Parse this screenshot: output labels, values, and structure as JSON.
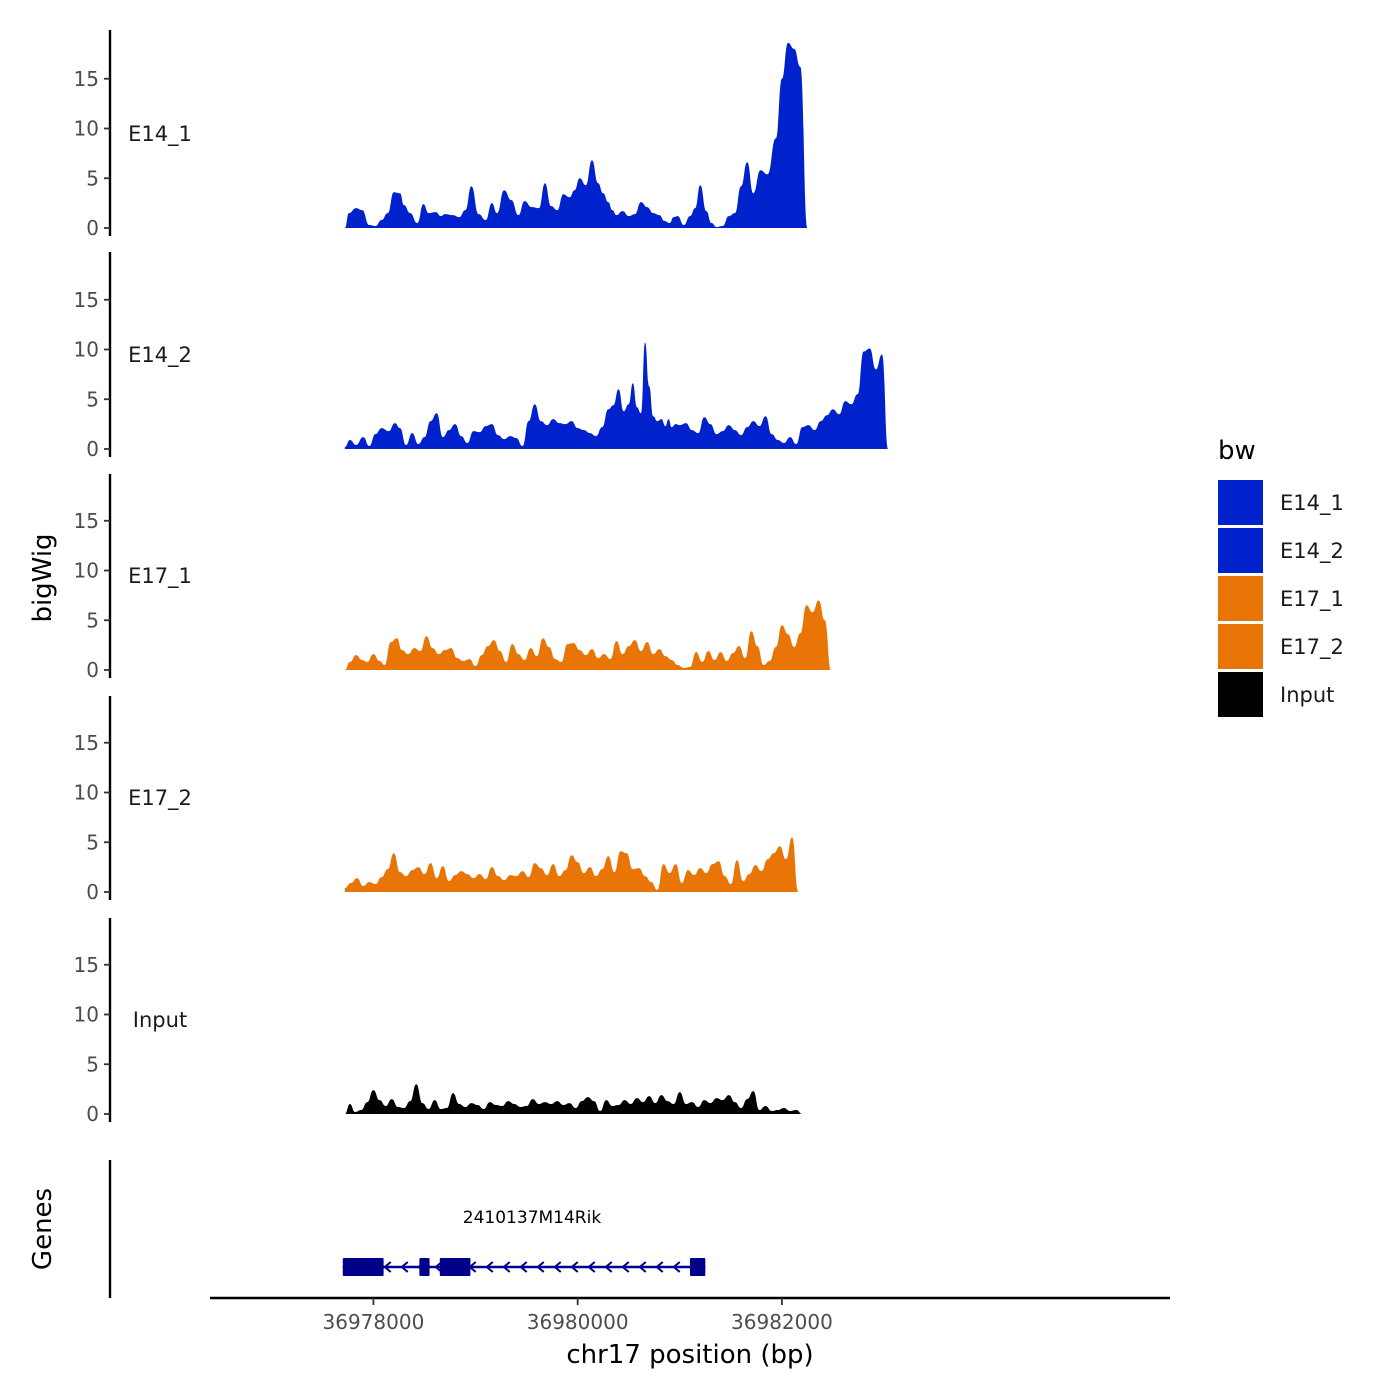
{
  "chart_data": {
    "type": "area",
    "xlabel": "chr17 position (bp)",
    "ylabel": "bigWig",
    "genes_label": "Genes",
    "xlim": [
      36976400,
      36985800
    ],
    "ylim": [
      0,
      20
    ],
    "y_ticks": [
      0,
      5,
      10,
      15
    ],
    "x_ticks": [
      {
        "value": 36978000,
        "label": "36978000"
      },
      {
        "value": 36980000,
        "label": "36980000"
      },
      {
        "value": 36982000,
        "label": "36982000"
      }
    ],
    "legend": {
      "title": "bw",
      "entries": [
        {
          "label": "E14_1",
          "color": "#0022CC"
        },
        {
          "label": "E14_2",
          "color": "#0022CC"
        },
        {
          "label": "E17_1",
          "color": "#E87506"
        },
        {
          "label": "E17_2",
          "color": "#E87506"
        },
        {
          "label": "Input",
          "color": "#000000"
        }
      ]
    },
    "series": [
      {
        "name": "E14_1",
        "label": "E14_1",
        "color": "#0022CC",
        "x": [
          36977720,
          36977760,
          36977830,
          36977890,
          36977960,
          36978020,
          36978080,
          36978140,
          36978200,
          36978260,
          36978300,
          36978360,
          36978430,
          36978490,
          36978540,
          36978610,
          36978660,
          36978700,
          36978780,
          36978840,
          36978900,
          36978960,
          36979030,
          36979100,
          36979160,
          36979210,
          36979280,
          36979350,
          36979420,
          36979480,
          36979550,
          36979620,
          36979680,
          36979740,
          36979800,
          36979860,
          36979920,
          36979970,
          36980020,
          36980080,
          36980140,
          36980200,
          36980250,
          36980300,
          36980340,
          36980380,
          36980440,
          36980500,
          36980560,
          36980620,
          36980680,
          36980740,
          36980800,
          36980850,
          36980900,
          36980940,
          36980980,
          36981040,
          36981100,
          36981150,
          36981200,
          36981260,
          36981310,
          36981360,
          36981420,
          36981480,
          36981540,
          36981600,
          36981660,
          36981720,
          36981790,
          36981860,
          36981940,
          36982000,
          36982060,
          36982120,
          36982180,
          36982250,
          36982320,
          36982390,
          36982460,
          36982530,
          36982600,
          36982660,
          36982720,
          36982780,
          36982830,
          36982880,
          36982930,
          36982970,
          36983000,
          36983040,
          36983080,
          36983110,
          36983140,
          36983170,
          36983200
        ],
        "values": [
          0,
          1.5,
          2,
          1.8,
          0.3,
          0.2,
          0.8,
          1.5,
          3.6,
          3.5,
          2.3,
          1.5,
          0.5,
          2.4,
          1.5,
          1.6,
          1.2,
          1.4,
          1.3,
          1.1,
          1.8,
          4.2,
          1.4,
          0.8,
          2.5,
          1.5,
          3.8,
          2.8,
          1.3,
          2.7,
          2.1,
          2.0,
          4.5,
          2.2,
          1.8,
          3.4,
          3.1,
          3.8,
          5.0,
          4.3,
          6.8,
          4.5,
          3.5,
          2.6,
          1.8,
          1.3,
          1.7,
          1.2,
          1.4,
          2.6,
          2.1,
          1.5,
          1.3,
          0.7,
          0.5,
          1.1,
          1.2,
          0.3,
          1.2,
          2.0,
          4.3,
          1.7,
          0.5,
          0.1,
          0.2,
          1.2,
          1.5,
          4.2,
          6.6,
          3.5,
          5.8,
          5.4,
          9.0,
          15.0,
          18.6,
          18.0,
          16.2,
          0,
          0,
          0,
          0,
          0,
          0,
          0,
          0,
          0,
          0,
          0,
          0,
          0,
          0,
          0,
          0,
          0,
          0,
          0,
          0
        ],
        "_comment": "approximate"
      },
      {
        "name": "E14_2",
        "label": "E14_2",
        "color": "#0022CC",
        "x": [
          36977720,
          36977770,
          36977830,
          36977900,
          36977960,
          36978020,
          36978080,
          36978150,
          36978210,
          36978260,
          36978320,
          36978380,
          36978440,
          36978500,
          36978560,
          36978620,
          36978680,
          36978740,
          36978800,
          36978860,
          36978920,
          36978980,
          36979040,
          36979100,
          36979160,
          36979220,
          36979280,
          36979340,
          36979400,
          36979460,
          36979520,
          36979580,
          36979640,
          36979700,
          36979760,
          36979820,
          36979880,
          36979940,
          36980000,
          36980060,
          36980120,
          36980180,
          36980240,
          36980300,
          36980350,
          36980400,
          36980450,
          36980500,
          36980540,
          36980580,
          36980620,
          36980660,
          36980700,
          36980740,
          36980780,
          36980820,
          36980860,
          36980890,
          36980920,
          36980960,
          36981000,
          36981060,
          36981120,
          36981180,
          36981240,
          36981300,
          36981360,
          36981420,
          36981480,
          36981540,
          36981600,
          36981660,
          36981720,
          36981780,
          36981840,
          36981900,
          36981960,
          36982020,
          36982080,
          36982140,
          36982200,
          36982260,
          36982320,
          36982380,
          36982440,
          36982500,
          36982560,
          36982620,
          36982680,
          36982740,
          36982800,
          36982860,
          36982920,
          36982980,
          36983040,
          36983100,
          36983160,
          36983200
        ],
        "values": [
          0.2,
          0.9,
          0.4,
          1.2,
          0.3,
          1.5,
          2.1,
          1.8,
          2.6,
          2.1,
          0.4,
          1.6,
          0.5,
          1.2,
          2.8,
          3.6,
          1.2,
          1.9,
          2.5,
          1.3,
          0.6,
          1.8,
          1.7,
          2.3,
          2.5,
          1.4,
          1.0,
          1.3,
          1.1,
          0.3,
          2.8,
          4.5,
          2.8,
          2.4,
          3.0,
          2.6,
          2.5,
          2.8,
          2.1,
          1.9,
          1.6,
          1.3,
          2.2,
          4.0,
          4.4,
          6.0,
          3.8,
          4.5,
          6.6,
          4.2,
          3.6,
          10.7,
          6.3,
          3.3,
          2.8,
          3.0,
          2.3,
          3.0,
          2.2,
          2.5,
          2.4,
          2.6,
          1.9,
          1.6,
          3.2,
          2.5,
          1.5,
          1.8,
          2.4,
          1.9,
          1.4,
          2.2,
          2.8,
          2.3,
          3.3,
          1.5,
          0.9,
          0.6,
          1.2,
          0.5,
          2.2,
          2.4,
          1.9,
          2.8,
          3.4,
          4.0,
          3.5,
          4.8,
          4.5,
          5.5,
          9.8,
          10.1,
          8.0,
          9.5,
          0,
          0,
          0,
          0
        ],
        "_comment": "approximate"
      },
      {
        "name": "E17_1",
        "label": "E17_1",
        "color": "#E87506",
        "x": [
          36977720,
          36977770,
          36977830,
          36977890,
          36977940,
          36978000,
          36978060,
          36978110,
          36978170,
          36978230,
          36978280,
          36978340,
          36978400,
          36978460,
          36978520,
          36978580,
          36978640,
          36978700,
          36978760,
          36978820,
          36978880,
          36978940,
          36979000,
          36979060,
          36979120,
          36979180,
          36979240,
          36979300,
          36979360,
          36979420,
          36979480,
          36979540,
          36979600,
          36979660,
          36979720,
          36979780,
          36979840,
          36979900,
          36979960,
          36980020,
          36980080,
          36980140,
          36980200,
          36980260,
          36980320,
          36980380,
          36980440,
          36980500,
          36980560,
          36980620,
          36980680,
          36980740,
          36980800,
          36980860,
          36980920,
          36980980,
          36981040,
          36981100,
          36981160,
          36981220,
          36981280,
          36981340,
          36981400,
          36981460,
          36981520,
          36981580,
          36981640,
          36981700,
          36981760,
          36981820,
          36981880,
          36981940,
          36982000,
          36982060,
          36982120,
          36982180,
          36982240,
          36982300,
          36982360,
          36982420,
          36982480,
          36982540,
          36982600,
          36982660,
          36982720,
          36982780,
          36982840,
          36982900,
          36982960,
          36983020,
          36983080,
          36983140,
          36983200
        ],
        "values": [
          0,
          0.8,
          1.5,
          1.0,
          0.8,
          1.6,
          0.9,
          0.5,
          2.8,
          3.2,
          2.0,
          1.6,
          2.2,
          1.9,
          3.4,
          2.2,
          1.6,
          2.0,
          2.2,
          1.2,
          0.9,
          1.1,
          0.4,
          1.5,
          2.4,
          3.0,
          1.9,
          0.8,
          2.6,
          1.6,
          1.0,
          2.2,
          1.4,
          3.2,
          2.3,
          1.1,
          0.8,
          2.6,
          2.7,
          2.0,
          1.5,
          2.1,
          1.2,
          1.6,
          1.1,
          2.9,
          1.6,
          2.4,
          3.0,
          1.9,
          2.8,
          1.6,
          2.1,
          1.4,
          1.0,
          0.5,
          0.2,
          0.3,
          1.8,
          0.8,
          1.9,
          1.0,
          1.8,
          0.9,
          1.7,
          2.4,
          1.2,
          3.9,
          2.4,
          0.5,
          0.9,
          2.3,
          4.5,
          3.6,
          2.3,
          3.7,
          6.5,
          5.8,
          7.0,
          5.0,
          0,
          0,
          0,
          0,
          0,
          0,
          0,
          0,
          0,
          0,
          0,
          0,
          0
        ],
        "_comment": "approximate"
      },
      {
        "name": "E17_2",
        "label": "E17_2",
        "color": "#E87506",
        "x": [
          36977720,
          36977780,
          36977840,
          36977900,
          36977960,
          36978020,
          36978080,
          36978140,
          36978200,
          36978260,
          36978320,
          36978380,
          36978440,
          36978500,
          36978560,
          36978620,
          36978680,
          36978740,
          36978800,
          36978860,
          36978920,
          36978980,
          36979040,
          36979100,
          36979160,
          36979220,
          36979280,
          36979340,
          36979400,
          36979460,
          36979520,
          36979580,
          36979640,
          36979700,
          36979760,
          36979820,
          36979880,
          36979940,
          36980000,
          36980060,
          36980120,
          36980180,
          36980240,
          36980300,
          36980360,
          36980420,
          36980480,
          36980540,
          36980600,
          36980660,
          36980720,
          36980780,
          36980840,
          36980900,
          36980960,
          36981020,
          36981080,
          36981140,
          36981200,
          36981260,
          36981320,
          36981380,
          36981440,
          36981500,
          36981560,
          36981620,
          36981680,
          36981740,
          36981800,
          36981860,
          36981920,
          36981980,
          36982040,
          36982100,
          36982160,
          36982220,
          36982280,
          36982340,
          36982400,
          36982460,
          36982520,
          36982580,
          36982640,
          36982700,
          36982760,
          36982820,
          36982880,
          36982940,
          36983000,
          36983060,
          36983120,
          36983180,
          36983200
        ],
        "values": [
          0.4,
          0.9,
          1.4,
          0.6,
          1.0,
          0.8,
          1.5,
          2.3,
          3.9,
          2.0,
          1.6,
          2.2,
          2.5,
          1.8,
          2.9,
          1.4,
          2.6,
          1.1,
          1.7,
          2.1,
          1.8,
          1.4,
          1.8,
          1.3,
          2.5,
          1.6,
          1.2,
          1.7,
          1.6,
          2.1,
          1.5,
          2.9,
          2.4,
          1.7,
          2.8,
          1.6,
          2.2,
          3.7,
          3.0,
          1.9,
          2.5,
          1.6,
          2.3,
          3.6,
          2.0,
          4.1,
          3.9,
          2.3,
          2.4,
          1.6,
          1.0,
          0.2,
          2.8,
          1.9,
          2.8,
          0.9,
          2.2,
          1.7,
          2.4,
          1.9,
          2.8,
          3.1,
          1.6,
          0.8,
          3.2,
          1.1,
          1.8,
          2.7,
          2.1,
          3.3,
          3.9,
          4.6,
          3.3,
          5.5,
          0,
          0,
          0,
          0,
          0,
          0,
          0,
          0,
          0,
          0,
          0,
          0,
          0,
          0,
          0,
          0,
          0,
          0,
          0
        ],
        "_comment": "approximate"
      },
      {
        "name": "Input",
        "label": "Input",
        "color": "#000000",
        "x": [
          36977720,
          36977770,
          36977820,
          36977880,
          36977940,
          36978000,
          36978060,
          36978120,
          36978180,
          36978240,
          36978300,
          36978360,
          36978420,
          36978480,
          36978540,
          36978600,
          36978660,
          36978720,
          36978780,
          36978840,
          36978900,
          36978960,
          36979020,
          36979080,
          36979140,
          36979200,
          36979260,
          36979320,
          36979380,
          36979440,
          36979500,
          36979560,
          36979620,
          36979680,
          36979740,
          36979800,
          36979860,
          36979920,
          36979980,
          36980040,
          36980100,
          36980160,
          36980220,
          36980280,
          36980340,
          36980400,
          36980460,
          36980520,
          36980580,
          36980640,
          36980700,
          36980760,
          36980820,
          36980880,
          36980940,
          36981000,
          36981060,
          36981120,
          36981180,
          36981240,
          36981300,
          36981360,
          36981420,
          36981480,
          36981540,
          36981600,
          36981660,
          36981720,
          36981780,
          36981840,
          36981900,
          36981960,
          36982020,
          36982080,
          36982140,
          36982200,
          36982260,
          36982320,
          36982380,
          36982440,
          36982500,
          36982560,
          36982620,
          36982680,
          36982740,
          36982800,
          36982860,
          36982920,
          36982980,
          36983040,
          36983100,
          36983160,
          36983200
        ],
        "values": [
          0,
          1.0,
          0.2,
          0.4,
          1.2,
          2.4,
          1.4,
          0.8,
          1.5,
          0.7,
          0.6,
          1.3,
          3.0,
          1.1,
          0.5,
          1.4,
          0.5,
          0.6,
          2.1,
          1.0,
          0.7,
          1.1,
          0.9,
          0.5,
          1.2,
          0.9,
          0.8,
          1.3,
          1.0,
          0.7,
          0.8,
          1.5,
          1.0,
          1.2,
          1.0,
          1.3,
          0.9,
          1.1,
          0.6,
          1.3,
          1.7,
          1.3,
          0.3,
          1.4,
          0.8,
          0.9,
          1.4,
          1.0,
          1.6,
          1.2,
          1.8,
          1.1,
          1.9,
          1.3,
          1.0,
          2.2,
          1.0,
          1.2,
          0.7,
          1.4,
          1.1,
          1.6,
          1.4,
          1.9,
          1.2,
          0.6,
          1.5,
          2.3,
          0.4,
          0.8,
          0.3,
          0.4,
          0.6,
          0.3,
          0.4,
          0,
          0,
          0,
          0,
          0,
          0,
          0,
          0,
          0,
          0,
          0,
          0,
          0,
          0,
          0,
          0,
          0,
          0
        ],
        "_comment": "approximate"
      }
    ],
    "gene": {
      "name": "2410137M14Rik",
      "strand": "-",
      "start": 36977700,
      "end": 36981250,
      "color": "#00008B",
      "exons": [
        [
          36977700,
          36978100
        ],
        [
          36978450,
          36978550
        ],
        [
          36978650,
          36978950
        ],
        [
          36981100,
          36981250
        ]
      ]
    }
  }
}
